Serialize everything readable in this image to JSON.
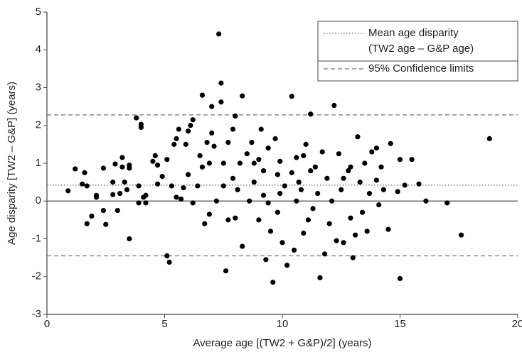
{
  "chart_data": {
    "type": "scatter",
    "x_label": "Average age [(TW2 + G&P)/2] (years)",
    "y_label": "Age disparity [TW2 – G&P] (years)",
    "xlim": [
      0,
      20
    ],
    "xticks": [
      0,
      5,
      10,
      15,
      20
    ],
    "ylim": [
      -3,
      5
    ],
    "yticks": [
      -3,
      -2,
      -1,
      0,
      1,
      2,
      3,
      4,
      5
    ],
    "points": {
      "color": "#000000",
      "x": [
        0.9,
        1.2,
        1.5,
        1.6,
        1.7,
        1.7,
        1.9,
        2.1,
        2.1,
        2.4,
        2.4,
        2.5,
        2.8,
        2.8,
        2.9,
        3.0,
        3.1,
        3.2,
        3.2,
        3.3,
        3.4,
        3.5,
        3.5,
        3.5,
        3.8,
        3.9,
        3.9,
        4.0,
        4.0,
        4.1,
        4.2,
        4.2,
        4.5,
        4.6,
        4.7,
        4.7,
        4.9,
        5.1,
        5.1,
        5.2,
        5.3,
        5.4,
        5.5,
        5.6,
        5.7,
        5.8,
        5.9,
        6.0,
        6.0,
        6.1,
        6.2,
        6.2,
        6.5,
        6.6,
        6.6,
        6.7,
        6.8,
        6.9,
        6.9,
        7.0,
        7.0,
        7.1,
        7.3,
        7.4,
        7.4,
        7.5,
        7.5,
        7.6,
        7.7,
        7.7,
        7.9,
        7.9,
        8.0,
        8.0,
        8.1,
        8.2,
        8.3,
        8.3,
        8.5,
        8.6,
        8.7,
        8.8,
        9.0,
        9.0,
        9.1,
        9.2,
        9.3,
        9.4,
        9.5,
        9.6,
        9.7,
        9.8,
        9.8,
        9.9,
        10.0,
        10.1,
        10.2,
        10.4,
        10.4,
        10.5,
        10.6,
        10.8,
        10.9,
        11.0,
        11.2,
        11.3,
        11.4,
        11.6,
        11.7,
        11.8,
        11.9,
        12.0,
        12.2,
        12.3,
        12.4,
        12.5,
        12.6,
        12.8,
        12.9,
        13.0,
        13.2,
        13.3,
        13.4,
        13.5,
        13.6,
        13.8,
        14.0,
        14.1,
        14.3,
        14.5,
        14.6,
        14.9,
        15.0,
        15.0,
        15.2,
        15.5,
        15.8,
        16.1,
        17.0,
        17.6,
        18.8,
        9.2,
        9.4,
        10.6,
        10.7,
        11.1,
        11.5,
        12.1,
        12.6,
        13.1,
        13.7,
        14.2,
        14.0,
        8.8,
        7.2,
        6.4,
        5.5,
        10.9,
        11.2,
        12.9,
        9.9
      ],
      "y": [
        0.27,
        0.85,
        0.45,
        0.75,
        0.4,
        -0.6,
        -0.4,
        0.1,
        0.15,
        0.87,
        -0.25,
        -0.62,
        0.5,
        0.17,
        0.98,
        -0.25,
        0.2,
        0.9,
        1.15,
        0.5,
        0.3,
        0.95,
        0.87,
        -1.0,
        2.2,
        -0.05,
        0.4,
        1.95,
        2.03,
        0.1,
        0.15,
        -0.05,
        1.05,
        1.2,
        0.45,
        0.95,
        0.65,
        1.1,
        -1.45,
        -1.62,
        0.4,
        1.5,
        1.65,
        1.9,
        0.05,
        0.35,
        1.5,
        1.85,
        0.7,
        2.0,
        2.15,
        -0.05,
        1.2,
        2.8,
        0.9,
        -0.6,
        1.55,
        1.0,
        -0.35,
        1.8,
        2.5,
        1.45,
        4.42,
        3.12,
        2.62,
        0.4,
        1.0,
        -1.85,
        1.55,
        -0.5,
        1.9,
        0.6,
        2.25,
        -0.45,
        0.3,
        1.0,
        2.78,
        -1.2,
        1.25,
        0.0,
        1.55,
        0.5,
        1.1,
        -0.5,
        1.9,
        0.15,
        -1.55,
        1.4,
        -0.8,
        -2.15,
        1.65,
        0.7,
        -0.3,
        1.05,
        -1.1,
        0.4,
        -1.7,
        2.77,
        0.75,
        -1.3,
        1.15,
        0.3,
        -0.85,
        1.5,
        2.3,
        -0.2,
        0.9,
        -2.03,
        1.3,
        -1.4,
        0.6,
        -0.6,
        2.53,
        -1.05,
        1.25,
        0.3,
        -1.1,
        0.8,
        -0.45,
        -1.5,
        1.7,
        0.5,
        -0.3,
        1.0,
        -0.8,
        1.3,
        0.55,
        -0.1,
        0.3,
        -0.75,
        1.52,
        0.25,
        1.1,
        -2.05,
        0.42,
        1.1,
        0.45,
        0.0,
        -0.05,
        -0.9,
        1.65,
        0.8,
        -0.05,
        0.0,
        0.5,
        -0.5,
        0.2,
        0.0,
        0.6,
        -0.9,
        0.2,
        0.9,
        1.4,
        1.0,
        0.0,
        0.4,
        0.1,
        1.2,
        0.8,
        0.9,
        0.2
      ]
    },
    "reference_lines": [
      {
        "value": 0,
        "style": "solid"
      },
      {
        "value": 0.42,
        "style": "dotted",
        "label": [
          "Mean age disparity",
          "(TW2 age – G&P age)"
        ]
      },
      {
        "value": 2.28,
        "style": "dashed",
        "label": [
          "95% Confidence limits"
        ]
      },
      {
        "value": -1.45,
        "style": "dashed"
      }
    ]
  }
}
